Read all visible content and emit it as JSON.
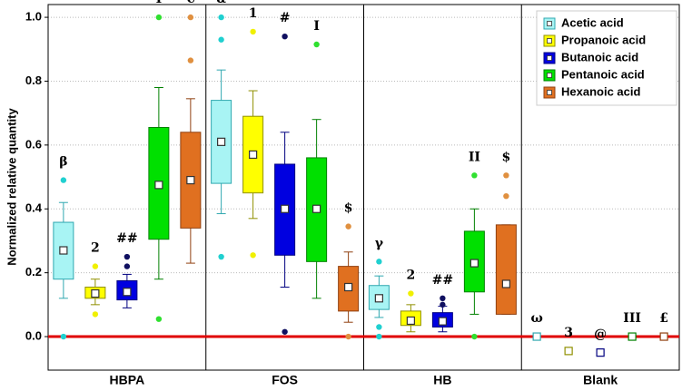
{
  "chart_data": {
    "type": "box",
    "y_label": "Normalized relative quantity",
    "categories": [
      "HBPA",
      "FOS",
      "HB",
      "Blank"
    ],
    "ylim": [
      -0.105,
      1.04
    ],
    "yticks": [
      {
        "value": 0,
        "label": "0.0"
      },
      {
        "value": 0.2,
        "label": "0.2"
      },
      {
        "value": 0.4,
        "label": "0.4"
      },
      {
        "value": 0.6,
        "label": "0.6"
      },
      {
        "value": 0.8,
        "label": "0.8"
      },
      {
        "value": 1,
        "label": "1.0"
      }
    ],
    "grid": true,
    "legend": "top-right",
    "series": [
      {
        "name": "Acetic acid",
        "color": "#a8f4f4",
        "edge": "#30a8b0",
        "outlier_color": "#20d0d0",
        "boxes": [
          {
            "whisker_low": 0.12,
            "q1": 0.18,
            "q3": 0.358,
            "whisker_high": 0.42,
            "mean": 0.27,
            "outliers": [
              0.49,
              0
            ],
            "label": "β"
          },
          {
            "whisker_low": 0.385,
            "q1": 0.48,
            "q3": 0.74,
            "whisker_high": 0.835,
            "mean": 0.61,
            "outliers": [
              1,
              0.93,
              0.25
            ],
            "label": "α"
          },
          {
            "whisker_low": 0.06,
            "q1": 0.085,
            "q3": 0.16,
            "whisker_high": 0.19,
            "mean": 0.12,
            "outliers": [
              0.235,
              0.03,
              0
            ],
            "label": "γ"
          },
          {
            "mean": 0,
            "label": "ω"
          }
        ]
      },
      {
        "name": "Propanoic acid",
        "color": "#ffff00",
        "edge": "#909000",
        "outlier_color": "#f0f000",
        "boxes": [
          {
            "whisker_low": 0.1,
            "q1": 0.12,
            "q3": 0.155,
            "whisker_high": 0.18,
            "mean": 0.135,
            "outliers": [
              0.22,
              0.07
            ],
            "label": "2"
          },
          {
            "whisker_low": 0.37,
            "q1": 0.45,
            "q3": 0.69,
            "whisker_high": 0.77,
            "mean": 0.57,
            "outliers": [
              0.955,
              0.255
            ],
            "label": "1"
          },
          {
            "whisker_low": 0.015,
            "q1": 0.035,
            "q3": 0.08,
            "whisker_high": 0.1,
            "mean": 0.05,
            "outliers": [
              0.135
            ],
            "label": "2"
          },
          {
            "mean": -0.045,
            "label": "3"
          }
        ]
      },
      {
        "name": "Butanoic acid",
        "color": "#0000e0",
        "edge": "#000080",
        "outlier_color": "#101060",
        "boxes": [
          {
            "whisker_low": 0.09,
            "q1": 0.115,
            "q3": 0.175,
            "whisker_high": 0.195,
            "mean": 0.14,
            "outliers": [
              0.25,
              0.22
            ],
            "label": "##"
          },
          {
            "whisker_low": 0.155,
            "q1": 0.255,
            "q3": 0.54,
            "whisker_high": 0.64,
            "mean": 0.4,
            "outliers": [
              0.94,
              0.015
            ],
            "label": "#"
          },
          {
            "whisker_low": 0.015,
            "q1": 0.03,
            "q3": 0.075,
            "whisker_high": 0.095,
            "mean": 0.048,
            "outliers": [
              0.12,
              0.1
            ],
            "label": "##"
          },
          {
            "mean": -0.05,
            "label": "@"
          }
        ]
      },
      {
        "name": "Pentanoic acid",
        "color": "#00e000",
        "edge": "#008000",
        "outlier_color": "#30e030",
        "boxes": [
          {
            "whisker_low": 0.18,
            "q1": 0.305,
            "q3": 0.655,
            "whisker_high": 0.78,
            "mean": 0.475,
            "outliers": [
              1,
              0.055
            ],
            "label": "I"
          },
          {
            "whisker_low": 0.12,
            "q1": 0.235,
            "q3": 0.56,
            "whisker_high": 0.68,
            "mean": 0.4,
            "outliers": [
              0.915
            ],
            "label": "I"
          },
          {
            "whisker_low": 0.07,
            "q1": 0.14,
            "q3": 0.33,
            "whisker_high": 0.4,
            "mean": 0.23,
            "outliers": [
              0.505,
              0
            ],
            "label": "II"
          },
          {
            "mean": 0,
            "label": "III"
          }
        ]
      },
      {
        "name": "Hexanoic acid",
        "color": "#e07020",
        "edge": "#904010",
        "outlier_color": "#e09040",
        "boxes": [
          {
            "whisker_low": 0.23,
            "q1": 0.34,
            "q3": 0.64,
            "whisker_high": 0.745,
            "mean": 0.49,
            "outliers": [
              1,
              0.865
            ],
            "label": "€"
          },
          {
            "whisker_low": 0.045,
            "q1": 0.08,
            "q3": 0.22,
            "whisker_high": 0.265,
            "mean": 0.155,
            "outliers": [
              0.345,
              0
            ],
            "label": "$"
          },
          {
            "whisker_low": 0.07,
            "q1": 0.07,
            "q3": 0.35,
            "whisker_high": 0.35,
            "mean": 0.165,
            "outliers": [
              0.505,
              0.44
            ],
            "label": "$"
          },
          {
            "mean": 0,
            "label": "£"
          }
        ]
      }
    ]
  }
}
